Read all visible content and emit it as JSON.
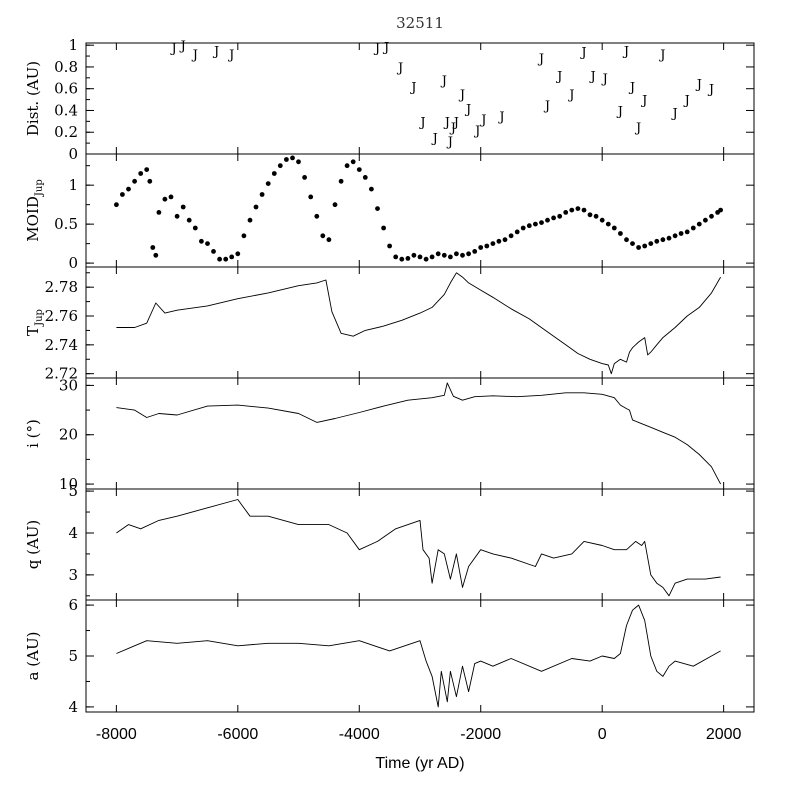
{
  "chart_data": {
    "type": "line",
    "title": "32511",
    "xlabel": "Time (yr AD)",
    "xlim": [
      -8500,
      2500
    ],
    "xticks": [
      -8000,
      -6000,
      -4000,
      -2000,
      0,
      2000
    ],
    "xtick_labels": [
      "-8000",
      "-6000",
      "-4000",
      "-2000",
      "0",
      "2000"
    ],
    "panels": [
      {
        "id": "dist",
        "ylabel": "Dist. (AU)",
        "ylabel_sub": "",
        "kind": "marker",
        "marker": "J",
        "ylim": [
          0,
          1.02
        ],
        "yticks": [
          0,
          0.2,
          0.4,
          0.6,
          0.8,
          1
        ],
        "ytick_labels": [
          "0",
          "0.2",
          "0.4",
          "0.6",
          "0.8",
          "1"
        ],
        "x": [
          -7050,
          -6900,
          -6700,
          -6350,
          -6100,
          -3700,
          -3550,
          -3320,
          -3100,
          -2950,
          -2750,
          -2600,
          -2550,
          -2500,
          -2450,
          -2400,
          -2300,
          -2200,
          -2050,
          -1950,
          -1650,
          -1000,
          -900,
          -700,
          -500,
          -300,
          -150,
          50,
          300,
          400,
          500,
          600,
          700,
          1000,
          1200,
          1400,
          1600,
          1800
        ],
        "y": [
          0.98,
          1.0,
          0.92,
          0.95,
          0.92,
          0.98,
          0.99,
          0.8,
          0.62,
          0.3,
          0.15,
          0.68,
          0.3,
          0.12,
          0.25,
          0.3,
          0.55,
          0.42,
          0.22,
          0.32,
          0.35,
          0.88,
          0.45,
          0.72,
          0.55,
          0.94,
          0.72,
          0.7,
          0.4,
          0.95,
          0.62,
          0.25,
          0.5,
          0.92,
          0.38,
          0.5,
          0.65,
          0.6
        ]
      },
      {
        "id": "moid",
        "ylabel": "MOID",
        "ylabel_sub": "Jup",
        "kind": "dots",
        "ylim": [
          -0.05,
          1.4
        ],
        "yticks": [
          0,
          0.5,
          1
        ],
        "ytick_labels": [
          "0",
          "0.5",
          "1"
        ],
        "x": [
          -8000,
          -7900,
          -7800,
          -7700,
          -7600,
          -7500,
          -7450,
          -7400,
          -7350,
          -7300,
          -7200,
          -7100,
          -7000,
          -6900,
          -6800,
          -6700,
          -6600,
          -6500,
          -6400,
          -6300,
          -6200,
          -6100,
          -6000,
          -5900,
          -5800,
          -5700,
          -5600,
          -5500,
          -5400,
          -5300,
          -5200,
          -5100,
          -5000,
          -4900,
          -4800,
          -4700,
          -4600,
          -4500,
          -4400,
          -4300,
          -4200,
          -4100,
          -4000,
          -3900,
          -3800,
          -3700,
          -3600,
          -3500,
          -3400,
          -3300,
          -3200,
          -3100,
          -3000,
          -2900,
          -2800,
          -2700,
          -2600,
          -2500,
          -2400,
          -2300,
          -2200,
          -2100,
          -2000,
          -1900,
          -1800,
          -1700,
          -1600,
          -1500,
          -1400,
          -1300,
          -1200,
          -1100,
          -1000,
          -900,
          -800,
          -700,
          -600,
          -500,
          -400,
          -300,
          -200,
          -100,
          0,
          100,
          200,
          300,
          400,
          500,
          600,
          700,
          800,
          900,
          1000,
          1100,
          1200,
          1300,
          1400,
          1500,
          1600,
          1700,
          1800,
          1900,
          1950
        ],
        "y": [
          0.75,
          0.88,
          0.95,
          1.05,
          1.15,
          1.2,
          1.05,
          0.2,
          0.1,
          0.65,
          0.82,
          0.85,
          0.6,
          0.72,
          0.55,
          0.45,
          0.28,
          0.25,
          0.15,
          0.05,
          0.05,
          0.08,
          0.12,
          0.35,
          0.55,
          0.72,
          0.88,
          1.02,
          1.15,
          1.25,
          1.33,
          1.35,
          1.3,
          1.1,
          0.85,
          0.6,
          0.35,
          0.3,
          0.75,
          1.05,
          1.25,
          1.3,
          1.2,
          1.1,
          0.95,
          0.7,
          0.45,
          0.22,
          0.08,
          0.05,
          0.06,
          0.1,
          0.08,
          0.05,
          0.08,
          0.12,
          0.1,
          0.08,
          0.12,
          0.1,
          0.12,
          0.15,
          0.2,
          0.22,
          0.25,
          0.28,
          0.3,
          0.35,
          0.4,
          0.45,
          0.48,
          0.5,
          0.52,
          0.55,
          0.58,
          0.6,
          0.65,
          0.68,
          0.7,
          0.68,
          0.62,
          0.6,
          0.55,
          0.5,
          0.45,
          0.38,
          0.3,
          0.25,
          0.2,
          0.22,
          0.25,
          0.28,
          0.3,
          0.32,
          0.35,
          0.38,
          0.4,
          0.45,
          0.5,
          0.55,
          0.6,
          0.65,
          0.68
        ]
      },
      {
        "id": "tjup",
        "ylabel": "T",
        "ylabel_sub": "Jup",
        "kind": "line",
        "ylim": [
          2.717,
          2.794
        ],
        "yticks": [
          2.72,
          2.74,
          2.76,
          2.78
        ],
        "ytick_labels": [
          "2.72",
          "2.74",
          "2.76",
          "2.78"
        ],
        "x": [
          -8000,
          -7700,
          -7500,
          -7350,
          -7200,
          -7000,
          -6500,
          -6000,
          -5500,
          -5000,
          -4700,
          -4550,
          -4450,
          -4300,
          -4100,
          -3900,
          -3600,
          -3300,
          -3000,
          -2800,
          -2600,
          -2500,
          -2400,
          -2300,
          -2200,
          -2000,
          -1800,
          -1500,
          -1200,
          -900,
          -600,
          -400,
          -200,
          0,
          100,
          150,
          200,
          300,
          400,
          450,
          500,
          600,
          700,
          750,
          800,
          900,
          1000,
          1200,
          1400,
          1600,
          1800,
          1950
        ],
        "y": [
          2.752,
          2.752,
          2.755,
          2.769,
          2.762,
          2.764,
          2.767,
          2.772,
          2.776,
          2.781,
          2.783,
          2.785,
          2.763,
          2.748,
          2.746,
          2.75,
          2.753,
          2.757,
          2.762,
          2.766,
          2.775,
          2.783,
          2.79,
          2.787,
          2.783,
          2.778,
          2.773,
          2.765,
          2.758,
          2.749,
          2.74,
          2.734,
          2.73,
          2.727,
          2.726,
          2.72,
          2.727,
          2.73,
          2.728,
          2.735,
          2.738,
          2.742,
          2.745,
          2.733,
          2.735,
          2.74,
          2.745,
          2.752,
          2.76,
          2.766,
          2.776,
          2.787
        ]
      },
      {
        "id": "inc",
        "ylabel": "i (°)",
        "ylabel_sub": "",
        "kind": "line",
        "ylim": [
          9,
          31.5
        ],
        "yticks": [
          10,
          20,
          30
        ],
        "ytick_labels": [
          "10",
          "20",
          "30"
        ],
        "x": [
          -8000,
          -7700,
          -7500,
          -7300,
          -7000,
          -6500,
          -6000,
          -5500,
          -5000,
          -4700,
          -4400,
          -4000,
          -3600,
          -3200,
          -2800,
          -2600,
          -2550,
          -2450,
          -2300,
          -2100,
          -1800,
          -1400,
          -1000,
          -600,
          -300,
          0,
          200,
          300,
          400,
          450,
          500,
          600,
          800,
          1000,
          1200,
          1400,
          1600,
          1800,
          1950
        ],
        "y": [
          25.5,
          25,
          23.5,
          24.3,
          24,
          25.8,
          26,
          25.4,
          24.3,
          22.5,
          23.3,
          24.5,
          25.8,
          27,
          27.5,
          28,
          30.5,
          27.8,
          27,
          27.7,
          27.9,
          27.7,
          28,
          28.5,
          28.5,
          28.2,
          27.5,
          26,
          25.3,
          25,
          23,
          22.5,
          21.5,
          20.5,
          19.5,
          18,
          16,
          13.5,
          10
        ]
      },
      {
        "id": "q",
        "ylabel": "q (AU)",
        "ylabel_sub": "",
        "kind": "line",
        "ylim": [
          2.4,
          5.05
        ],
        "yticks": [
          3,
          4,
          5
        ],
        "ytick_labels": [
          "3",
          "4",
          "5"
        ],
        "x": [
          -8000,
          -7800,
          -7600,
          -7300,
          -7000,
          -6500,
          -6000,
          -5800,
          -5500,
          -5000,
          -4500,
          -4200,
          -4000,
          -3700,
          -3400,
          -3000,
          -2950,
          -2850,
          -2800,
          -2700,
          -2600,
          -2500,
          -2400,
          -2300,
          -2200,
          -2000,
          -1800,
          -1500,
          -1100,
          -1000,
          -800,
          -500,
          -300,
          0,
          200,
          400,
          550,
          650,
          700,
          800,
          900,
          1000,
          1100,
          1200,
          1400,
          1700,
          1950
        ],
        "y": [
          4,
          4.2,
          4.1,
          4.3,
          4.4,
          4.6,
          4.8,
          4.4,
          4.4,
          4.2,
          4.2,
          4,
          3.6,
          3.8,
          4.1,
          4.3,
          3.6,
          3.4,
          2.8,
          3.6,
          3.5,
          2.9,
          3.5,
          2.7,
          3.2,
          3.6,
          3.5,
          3.4,
          3.2,
          3.5,
          3.4,
          3.5,
          3.8,
          3.7,
          3.6,
          3.6,
          3.8,
          3.7,
          3.8,
          3.0,
          2.8,
          2.7,
          2.5,
          2.8,
          2.9,
          2.9,
          2.95
        ]
      },
      {
        "id": "a",
        "ylabel": "a (AU)",
        "ylabel_sub": "",
        "kind": "line",
        "ylim": [
          3.9,
          6.1
        ],
        "yticks": [
          4,
          5,
          6
        ],
        "ytick_labels": [
          "4",
          "5",
          "6"
        ],
        "x": [
          -8000,
          -7500,
          -7000,
          -6500,
          -6000,
          -5500,
          -5000,
          -4500,
          -4000,
          -3500,
          -3000,
          -2900,
          -2800,
          -2700,
          -2650,
          -2550,
          -2500,
          -2400,
          -2300,
          -2200,
          -2100,
          -2000,
          -1800,
          -1500,
          -1000,
          -500,
          -200,
          0,
          200,
          300,
          400,
          500,
          600,
          700,
          800,
          900,
          1000,
          1100,
          1200,
          1500,
          1800,
          1950
        ],
        "y": [
          5.05,
          5.3,
          5.25,
          5.3,
          5.2,
          5.25,
          5.25,
          5.2,
          5.3,
          5.1,
          5.3,
          4.9,
          4.6,
          4.0,
          4.7,
          4.1,
          4.7,
          4.2,
          4.8,
          4.3,
          4.85,
          4.9,
          4.8,
          4.95,
          4.7,
          4.95,
          4.9,
          5.0,
          4.95,
          5.05,
          5.6,
          5.9,
          6.0,
          5.7,
          5.0,
          4.7,
          4.6,
          4.8,
          4.9,
          4.8,
          5.0,
          5.1
        ]
      }
    ]
  }
}
